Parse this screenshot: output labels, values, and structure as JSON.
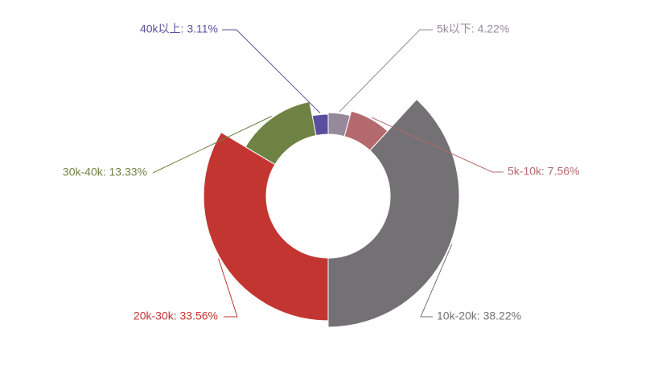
{
  "chart_data": {
    "type": "pie",
    "title": "",
    "variant": "nightingale-rose-donut",
    "legend": "none",
    "slices": [
      {
        "name": "5k以下",
        "value": 4.22,
        "label": "5k以下: 4.22%",
        "color": "#968a9a"
      },
      {
        "name": "5k-10k",
        "value": 7.56,
        "label": "5k-10k: 7.56%",
        "color": "#b46a6d"
      },
      {
        "name": "10k-20k",
        "value": 38.22,
        "label": "10k-20k: 38.22%",
        "color": "#737173"
      },
      {
        "name": "20k-30k",
        "value": 33.56,
        "label": "20k-30k: 33.56%",
        "color": "#c33531"
      },
      {
        "name": "30k-40k",
        "value": 13.33,
        "label": "30k-40k: 13.33%",
        "color": "#6e8244"
      },
      {
        "name": "40k以上",
        "value": 3.11,
        "label": "40k以上: 3.11%",
        "color": "#5b4e9e"
      }
    ]
  }
}
